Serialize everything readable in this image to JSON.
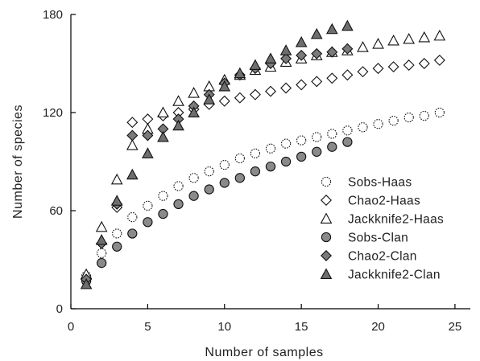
{
  "chart_data": {
    "type": "scatter",
    "title": "",
    "xlabel": "Number of samples",
    "ylabel": "Number of species",
    "xlim": [
      0,
      26
    ],
    "ylim": [
      0,
      180
    ],
    "xticks": [
      0,
      5,
      10,
      15,
      20,
      25
    ],
    "yticks": [
      0,
      60,
      120,
      180
    ],
    "grid": false,
    "legend_position": "bottom-right",
    "series": [
      {
        "name": "Sobs-Haas",
        "marker": "circle-dotted",
        "fill": "#ffffff",
        "x": [
          1,
          2,
          3,
          4,
          5,
          6,
          7,
          8,
          9,
          10,
          11,
          12,
          13,
          14,
          15,
          16,
          17,
          18,
          19,
          20,
          21,
          22,
          23,
          24
        ],
        "y": [
          20,
          34,
          46,
          56,
          63,
          69,
          75,
          80,
          84,
          88,
          92,
          95,
          98,
          101,
          103,
          105,
          107,
          109,
          111,
          113,
          115,
          117,
          118,
          120
        ]
      },
      {
        "name": "Chao2-Haas",
        "marker": "diamond",
        "fill": "#ffffff",
        "x": [
          1,
          2,
          3,
          4,
          5,
          6,
          7,
          8,
          9,
          10,
          11,
          12,
          13,
          14,
          15,
          16,
          17,
          18,
          19,
          20,
          21,
          22,
          23,
          24
        ],
        "y": [
          18,
          40,
          62,
          114,
          116,
          118,
          120,
          122,
          125,
          127,
          129,
          131,
          133,
          135,
          137,
          139,
          141,
          143,
          145,
          147,
          148,
          149,
          150,
          152
        ]
      },
      {
        "name": "Jackknife2-Haas",
        "marker": "triangle",
        "fill": "#ffffff",
        "x": [
          1,
          2,
          3,
          4,
          5,
          6,
          7,
          8,
          9,
          10,
          11,
          12,
          13,
          14,
          15,
          16,
          17,
          18,
          19,
          20,
          21,
          22,
          23,
          24
        ],
        "y": [
          21,
          50,
          79,
          100,
          110,
          120,
          127,
          132,
          136,
          140,
          143,
          146,
          148,
          151,
          153,
          155,
          157,
          158,
          160,
          162,
          164,
          165,
          166,
          167
        ]
      },
      {
        "name": "Sobs-Clan",
        "marker": "circle",
        "fill": "#8a8a8a",
        "x": [
          1,
          2,
          3,
          4,
          5,
          6,
          7,
          8,
          9,
          10,
          11,
          12,
          13,
          14,
          15,
          16,
          17,
          18
        ],
        "y": [
          17,
          28,
          38,
          46,
          53,
          58,
          64,
          69,
          73,
          77,
          80,
          84,
          87,
          90,
          93,
          96,
          99,
          102
        ]
      },
      {
        "name": "Chao2-Clan",
        "marker": "diamond",
        "fill": "#7a7a7a",
        "x": [
          1,
          2,
          3,
          4,
          5,
          6,
          7,
          8,
          9,
          10,
          11,
          12,
          13,
          14,
          15,
          16,
          17,
          18
        ],
        "y": [
          18,
          40,
          64,
          106,
          106,
          110,
          116,
          124,
          131,
          138,
          143,
          147,
          150,
          153,
          155,
          156,
          157,
          159
        ]
      },
      {
        "name": "Jackknife2-Clan",
        "marker": "triangle",
        "fill": "#6e6e6e",
        "x": [
          1,
          2,
          3,
          4,
          5,
          6,
          7,
          8,
          9,
          10,
          11,
          12,
          13,
          14,
          15,
          16,
          17,
          18
        ],
        "y": [
          15,
          42,
          66,
          82,
          95,
          105,
          112,
          120,
          128,
          136,
          144,
          149,
          153,
          158,
          163,
          168,
          171,
          173
        ]
      }
    ]
  }
}
